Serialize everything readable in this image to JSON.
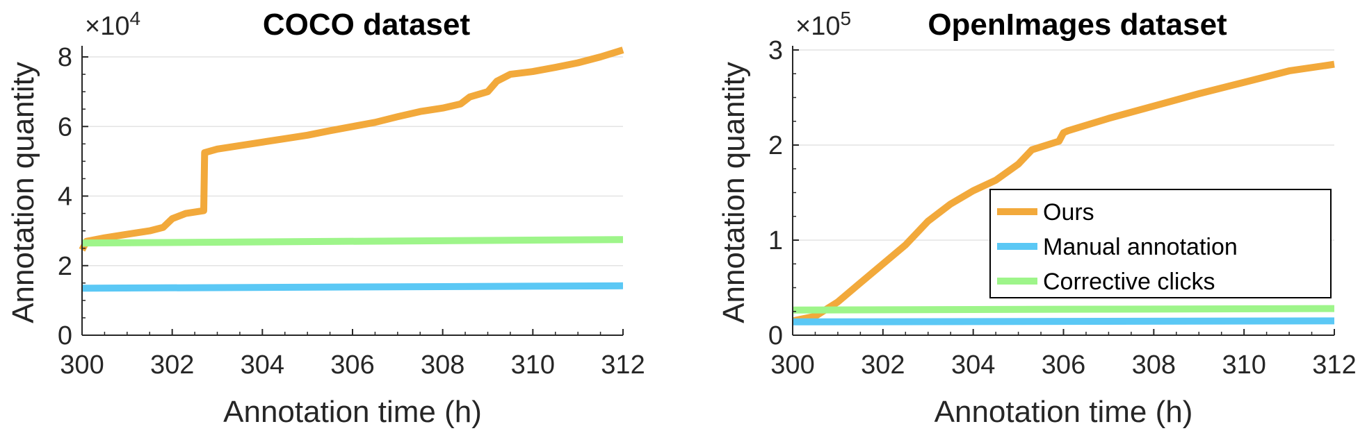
{
  "colors": {
    "ours": "#F2A93B",
    "manual": "#5BC8F5",
    "corrective": "#9EF58A",
    "grid": "#E3E3E3",
    "axis": "#262626"
  },
  "chart_data": [
    {
      "type": "line",
      "title": "COCO dataset",
      "xlabel": "Annotation time (h)",
      "ylabel": "Annotation quantity",
      "xlim": [
        300,
        312
      ],
      "ylim": [
        0,
        82000
      ],
      "xticks": [
        300,
        302,
        304,
        306,
        308,
        310,
        312
      ],
      "xtick_labels": [
        "300",
        "302",
        "304",
        "306",
        "308",
        "310",
        "312"
      ],
      "yticks": [
        0,
        20000,
        40000,
        60000,
        80000
      ],
      "ytick_labels": [
        "0",
        "2",
        "4",
        "6",
        "8"
      ],
      "y_multiplier": {
        "base": "×10",
        "exponent": "4"
      },
      "grid": "horizontal",
      "series": [
        {
          "name": "Ours",
          "color_key": "ours",
          "x": [
            300,
            300.1,
            300.5,
            301.0,
            301.5,
            301.8,
            302.0,
            302.3,
            302.7,
            302.72,
            303.0,
            303.5,
            304.0,
            304.5,
            305.0,
            305.5,
            306.0,
            306.5,
            307.0,
            307.5,
            308.0,
            308.4,
            308.6,
            309.0,
            309.2,
            309.5,
            310.0,
            310.5,
            311.0,
            311.5,
            312.0
          ],
          "y": [
            24500,
            27000,
            28000,
            29000,
            30000,
            31000,
            33500,
            35000,
            35800,
            52500,
            53500,
            54500,
            55500,
            56500,
            57500,
            58800,
            60000,
            61200,
            62800,
            64300,
            65300,
            66500,
            68500,
            70000,
            73000,
            75000,
            75800,
            77000,
            78300,
            80000,
            82000
          ]
        },
        {
          "name": "Manual annotation",
          "color_key": "manual",
          "x": [
            300,
            312
          ],
          "y": [
            13500,
            14200
          ]
        },
        {
          "name": "Corrective clicks",
          "color_key": "corrective",
          "x": [
            300,
            312
          ],
          "y": [
            26500,
            27500
          ]
        }
      ]
    },
    {
      "type": "line",
      "title": "OpenImages dataset",
      "xlabel": "Annotation time (h)",
      "ylabel": "Annotation quantity",
      "xlim": [
        300,
        312
      ],
      "ylim": [
        0,
        300000
      ],
      "xticks": [
        300,
        302,
        304,
        306,
        308,
        310,
        312
      ],
      "xtick_labels": [
        "300",
        "302",
        "304",
        "306",
        "308",
        "310",
        "312"
      ],
      "yticks": [
        0,
        100000,
        200000,
        300000
      ],
      "ytick_labels": [
        "0",
        "1",
        "2",
        "3"
      ],
      "y_multiplier": {
        "base": "×10",
        "exponent": "5"
      },
      "grid": "horizontal",
      "legend": {
        "placement": "center-right",
        "entries": [
          "Ours",
          "Manual annotation",
          "Corrective clicks"
        ]
      },
      "series": [
        {
          "name": "Ours",
          "color_key": "ours",
          "x": [
            300,
            300.5,
            301.0,
            301.5,
            302.0,
            302.5,
            303.0,
            303.5,
            304.0,
            304.5,
            305.0,
            305.3,
            305.9,
            306.0,
            306.1,
            307.0,
            308.0,
            309.0,
            310.0,
            311.0,
            312.0
          ],
          "y": [
            15000,
            20000,
            35000,
            55000,
            75000,
            95000,
            120000,
            138000,
            152000,
            163000,
            180000,
            195000,
            204000,
            213000,
            215000,
            228000,
            241000,
            254000,
            266000,
            278000,
            285000
          ]
        },
        {
          "name": "Manual annotation",
          "color_key": "manual",
          "x": [
            300,
            312
          ],
          "y": [
            14000,
            15000
          ]
        },
        {
          "name": "Corrective clicks",
          "color_key": "corrective",
          "x": [
            300,
            312
          ],
          "y": [
            26500,
            28000
          ]
        }
      ]
    }
  ]
}
